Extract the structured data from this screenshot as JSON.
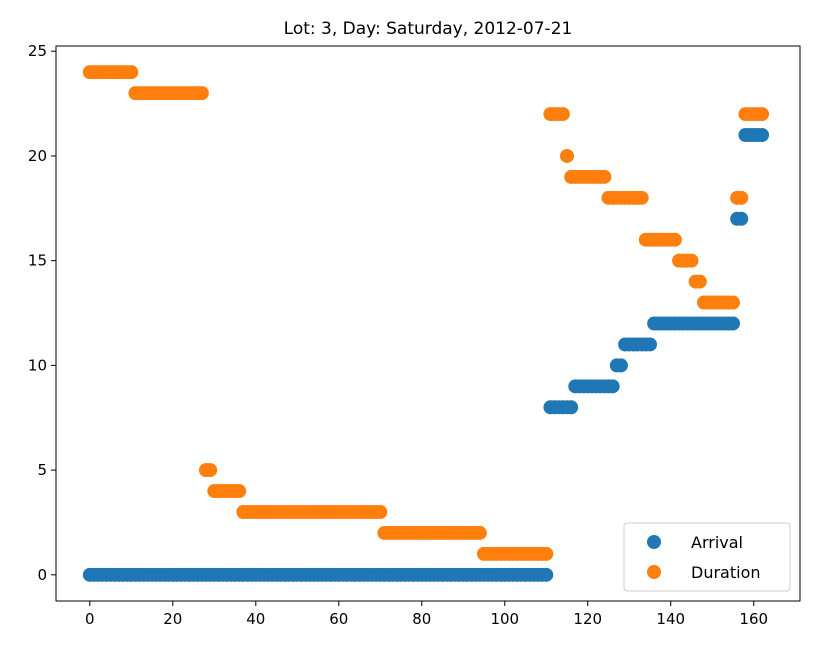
{
  "chart_data": {
    "type": "scatter",
    "title": "Lot: 3, Day: Saturday, 2012-07-21",
    "xlabel": "",
    "ylabel": "",
    "xlim": [
      -8.15,
      171.15
    ],
    "ylim": [
      -1.25,
      25.25
    ],
    "xticks": [
      0,
      20,
      40,
      60,
      80,
      100,
      120,
      140,
      160
    ],
    "yticks": [
      0,
      5,
      10,
      15,
      20,
      25
    ],
    "grid": false,
    "legend_position": "lower-right",
    "series": [
      {
        "name": "Arrival",
        "color": "#1f77b4",
        "runs": [
          {
            "x_start": 0,
            "x_end": 110,
            "y": 0
          },
          {
            "x_start": 111,
            "x_end": 116,
            "y": 8
          },
          {
            "x_start": 117,
            "x_end": 126,
            "y": 9
          },
          {
            "x_start": 127,
            "x_end": 128,
            "y": 10
          },
          {
            "x_start": 129,
            "x_end": 135,
            "y": 11
          },
          {
            "x_start": 136,
            "x_end": 155,
            "y": 12
          },
          {
            "x_start": 156,
            "x_end": 157,
            "y": 17
          },
          {
            "x_start": 158,
            "x_end": 162,
            "y": 21
          }
        ]
      },
      {
        "name": "Duration",
        "color": "#ff7f0e",
        "runs": [
          {
            "x_start": 0,
            "x_end": 10,
            "y": 24
          },
          {
            "x_start": 11,
            "x_end": 27,
            "y": 23
          },
          {
            "x_start": 28,
            "x_end": 29,
            "y": 5
          },
          {
            "x_start": 30,
            "x_end": 36,
            "y": 4
          },
          {
            "x_start": 37,
            "x_end": 70,
            "y": 3
          },
          {
            "x_start": 71,
            "x_end": 94,
            "y": 2
          },
          {
            "x_start": 95,
            "x_end": 110,
            "y": 1
          },
          {
            "x_start": 111,
            "x_end": 114,
            "y": 22
          },
          {
            "x_start": 115,
            "x_end": 115,
            "y": 20
          },
          {
            "x_start": 116,
            "x_end": 124,
            "y": 19
          },
          {
            "x_start": 125,
            "x_end": 133,
            "y": 18
          },
          {
            "x_start": 134,
            "x_end": 141,
            "y": 16
          },
          {
            "x_start": 142,
            "x_end": 145,
            "y": 15
          },
          {
            "x_start": 146,
            "x_end": 147,
            "y": 14
          },
          {
            "x_start": 148,
            "x_end": 155,
            "y": 13
          },
          {
            "x_start": 156,
            "x_end": 157,
            "y": 18
          },
          {
            "x_start": 158,
            "x_end": 162,
            "y": 22
          }
        ]
      }
    ]
  }
}
